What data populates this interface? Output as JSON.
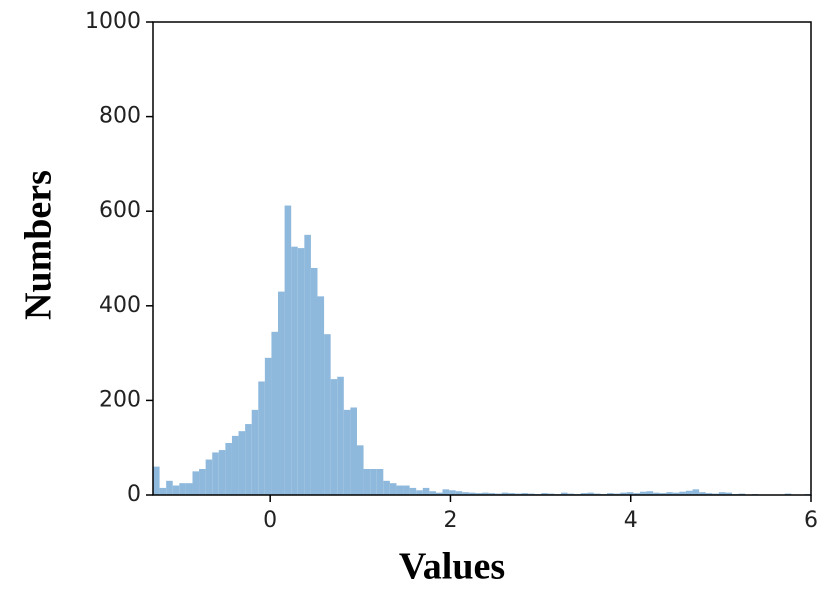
{
  "chart_data": {
    "type": "histogram",
    "xlabel": "Values",
    "ylabel": "Numbers",
    "bins": [
      -1.3,
      -1.227,
      -1.154,
      -1.081,
      -1.008,
      -0.935,
      -0.862,
      -0.789,
      -0.716,
      -0.643,
      -0.57,
      -0.497,
      -0.424,
      -0.351,
      -0.278,
      -0.205,
      -0.132,
      -0.059,
      0.014,
      0.087,
      0.16,
      0.233,
      0.306,
      0.379,
      0.452,
      0.525,
      0.598,
      0.671,
      0.744,
      0.817,
      0.89,
      0.963,
      1.036,
      1.109,
      1.182,
      1.255,
      1.328,
      1.401,
      1.474,
      1.547,
      1.62,
      1.693,
      1.766,
      1.839,
      1.912,
      1.985,
      2.058,
      2.131,
      2.204,
      2.277,
      2.35,
      2.423,
      2.496,
      2.569,
      2.642,
      2.715,
      2.788,
      2.861,
      2.934,
      3.007,
      3.08,
      3.153,
      3.226,
      3.299,
      3.372,
      3.445,
      3.518,
      3.591,
      3.664,
      3.737,
      3.81,
      3.883,
      3.956,
      4.029,
      4.102,
      4.175,
      4.248,
      4.321,
      4.394,
      4.467,
      4.54,
      4.613,
      4.686,
      4.759,
      4.832,
      4.905,
      4.978,
      5.051,
      5.124,
      5.197,
      5.27,
      5.343,
      5.416,
      5.489,
      5.562,
      5.635,
      5.708,
      5.781,
      5.854,
      5.927,
      6.0
    ],
    "counts": [
      60,
      15,
      30,
      20,
      25,
      25,
      50,
      55,
      75,
      90,
      95,
      110,
      125,
      135,
      150,
      180,
      240,
      290,
      345,
      430,
      612,
      525,
      522,
      550,
      480,
      420,
      340,
      245,
      250,
      180,
      185,
      105,
      55,
      55,
      55,
      30,
      25,
      20,
      20,
      15,
      10,
      15,
      8,
      5,
      12,
      10,
      8,
      6,
      5,
      4,
      5,
      4,
      3,
      5,
      4,
      3,
      4,
      3,
      2,
      4,
      3,
      2,
      5,
      3,
      2,
      4,
      5,
      3,
      2,
      4,
      3,
      5,
      6,
      4,
      7,
      8,
      5,
      4,
      6,
      5,
      7,
      9,
      12,
      6,
      4,
      3,
      6,
      5,
      2,
      3,
      1,
      2,
      1,
      0,
      1,
      0,
      3,
      1,
      0,
      2
    ],
    "color": "#8fb9dc",
    "xlim": [
      -1.3,
      6
    ],
    "ylim": [
      0,
      1000
    ],
    "xticks": [
      0,
      2,
      4,
      6
    ],
    "yticks": [
      0,
      200,
      400,
      600,
      800,
      1000
    ]
  }
}
